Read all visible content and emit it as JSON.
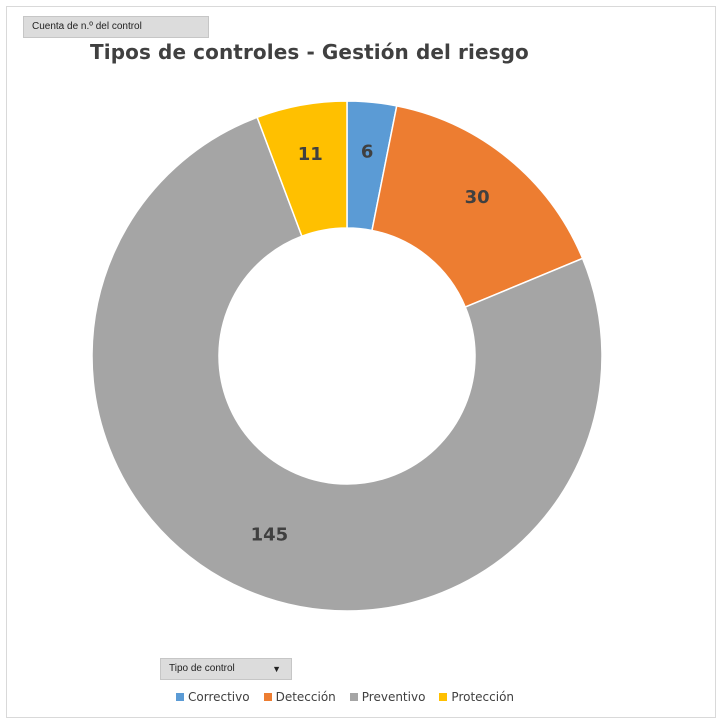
{
  "value_field_button": {
    "label": "Cuenta de n.º del control"
  },
  "row_field_button": {
    "label": "Tipo de control",
    "arrow_icon": "dropdown-arrow-icon"
  },
  "chart_data": {
    "type": "pie",
    "title": "Tipos de controles - Gestión del riesgo",
    "categories": [
      "Correctivo",
      "Detección",
      "Preventivo",
      "Protección"
    ],
    "values": [
      6,
      30,
      145,
      11
    ],
    "colors": [
      "#5b9bd5",
      "#ed7d31",
      "#a5a5a5",
      "#ffc000"
    ],
    "legend_position": "bottom"
  }
}
